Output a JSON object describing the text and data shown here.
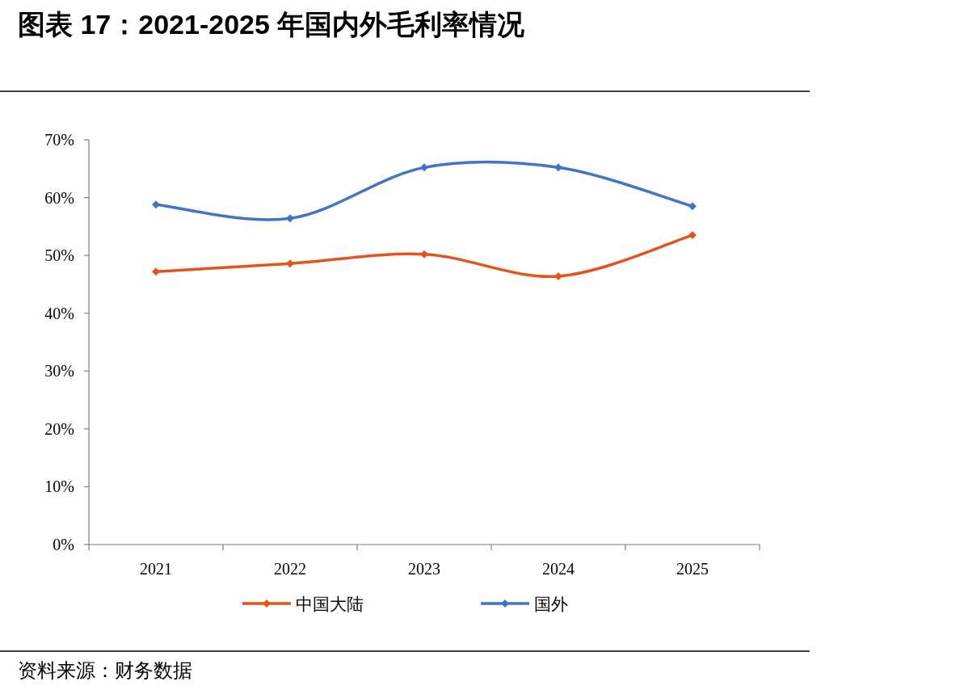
{
  "chart_data": {
    "type": "line",
    "title": "图表 17：2021-2025 年国内外毛利率情况",
    "categories": [
      "2021",
      "2022",
      "2023",
      "2024",
      "2025"
    ],
    "series": [
      {
        "name": "中国大陆",
        "color": "#e2531d",
        "values": [
          47.2,
          48.6,
          50.2,
          46.4,
          53.5
        ]
      },
      {
        "name": "国外",
        "color": "#4472c4",
        "values": [
          58.8,
          56.4,
          65.2,
          65.2,
          58.5
        ]
      }
    ],
    "ylim": [
      0,
      70
    ],
    "yticks": [
      {
        "value": 0,
        "label": "0%"
      },
      {
        "value": 10,
        "label": "10%"
      },
      {
        "value": 20,
        "label": "20%"
      },
      {
        "value": 30,
        "label": "30%"
      },
      {
        "value": 40,
        "label": "40%"
      },
      {
        "value": 50,
        "label": "50%"
      },
      {
        "value": 60,
        "label": "60%"
      },
      {
        "value": 70,
        "label": "70%"
      }
    ],
    "marker": "diamond",
    "legend": "bottom",
    "grid": false,
    "annotations": [
      "资料来源：财务数据"
    ]
  }
}
